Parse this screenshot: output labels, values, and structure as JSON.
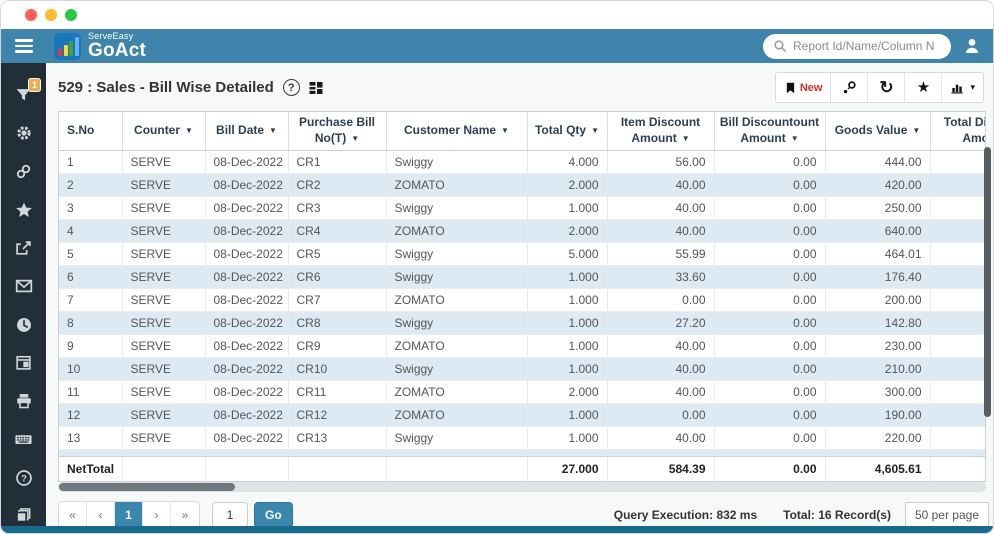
{
  "colors": {
    "appbar": "#3e84ab",
    "sidebar_bg": "#232f38",
    "row_alt": "#ddeaf4",
    "active_page": "#3a86ad",
    "badge": "#f0ad4e",
    "new_label": "#c9302c",
    "bottom_edge": "#1a6a8e",
    "dot_red": "#ff5f57",
    "dot_yellow": "#febc2e",
    "dot_green": "#28c840"
  },
  "header": {
    "brand_top": "ServeEasy",
    "brand_bottom": "GoAct",
    "search_placeholder": "Report Id/Name/Column N"
  },
  "sidebar": {
    "filter_badge": "1"
  },
  "report_bar": {
    "title": "529 : Sales - Bill Wise Detailed",
    "help_glyph": "?",
    "toolbar": {
      "new_label": "New",
      "refresh_glyph": "↻",
      "star_glyph": "★",
      "chart_caret_glyph": "▾"
    }
  },
  "table": {
    "sort_caret_glyph": "▼",
    "columns": [
      {
        "label": "S.No",
        "sortable": false
      },
      {
        "label": "Counter",
        "sortable": true
      },
      {
        "label": "Bill Date",
        "sortable": true
      },
      {
        "label": "Purchase Bill No(T)",
        "sortable": true
      },
      {
        "label": "Customer Name",
        "sortable": true
      },
      {
        "label": "Total Qty",
        "sortable": true
      },
      {
        "label": "Item Discount Amount",
        "sortable": true
      },
      {
        "label": "Bill Discountount Amount",
        "sortable": true
      },
      {
        "label": "Goods Value",
        "sortable": true
      },
      {
        "label": "Total Discount Amount",
        "sortable": false
      }
    ],
    "rows": [
      [
        "1",
        "SERVE",
        "08-Dec-2022",
        "CR1",
        "Swiggy",
        "4.000",
        "56.00",
        "0.00",
        "444.00",
        ""
      ],
      [
        "2",
        "SERVE",
        "08-Dec-2022",
        "CR2",
        "ZOMATO",
        "2.000",
        "40.00",
        "0.00",
        "420.00",
        ""
      ],
      [
        "3",
        "SERVE",
        "08-Dec-2022",
        "CR3",
        "Swiggy",
        "1.000",
        "40.00",
        "0.00",
        "250.00",
        ""
      ],
      [
        "4",
        "SERVE",
        "08-Dec-2022",
        "CR4",
        "ZOMATO",
        "2.000",
        "40.00",
        "0.00",
        "640.00",
        ""
      ],
      [
        "5",
        "SERVE",
        "08-Dec-2022",
        "CR5",
        "Swiggy",
        "5.000",
        "55.99",
        "0.00",
        "464.01",
        ""
      ],
      [
        "6",
        "SERVE",
        "08-Dec-2022",
        "CR6",
        "Swiggy",
        "1.000",
        "33.60",
        "0.00",
        "176.40",
        ""
      ],
      [
        "7",
        "SERVE",
        "08-Dec-2022",
        "CR7",
        "ZOMATO",
        "1.000",
        "0.00",
        "0.00",
        "200.00",
        ""
      ],
      [
        "8",
        "SERVE",
        "08-Dec-2022",
        "CR8",
        "Swiggy",
        "1.000",
        "27.20",
        "0.00",
        "142.80",
        ""
      ],
      [
        "9",
        "SERVE",
        "08-Dec-2022",
        "CR9",
        "ZOMATO",
        "1.000",
        "40.00",
        "0.00",
        "230.00",
        ""
      ],
      [
        "10",
        "SERVE",
        "08-Dec-2022",
        "CR10",
        "Swiggy",
        "1.000",
        "40.00",
        "0.00",
        "210.00",
        ""
      ],
      [
        "11",
        "SERVE",
        "08-Dec-2022",
        "CR11",
        "ZOMATO",
        "2.000",
        "40.00",
        "0.00",
        "300.00",
        ""
      ],
      [
        "12",
        "SERVE",
        "08-Dec-2022",
        "CR12",
        "ZOMATO",
        "1.000",
        "0.00",
        "0.00",
        "190.00",
        ""
      ],
      [
        "13",
        "SERVE",
        "08-Dec-2022",
        "CR13",
        "Swiggy",
        "1.000",
        "40.00",
        "0.00",
        "220.00",
        ""
      ]
    ],
    "net_total": [
      "NetTotal",
      "",
      "",
      "",
      "",
      "27.000",
      "584.39",
      "0.00",
      "4,605.61",
      ""
    ]
  },
  "footer": {
    "pagination": {
      "first_glyph": "«",
      "prev_glyph": "‹",
      "page": "1",
      "next_glyph": "›",
      "last_glyph": "»",
      "page_input_value": "1",
      "go_label": "Go"
    },
    "query_execution": "Query Execution: 832 ms",
    "total_records": "Total: 16 Record(s)",
    "per_page": "50 per page"
  }
}
